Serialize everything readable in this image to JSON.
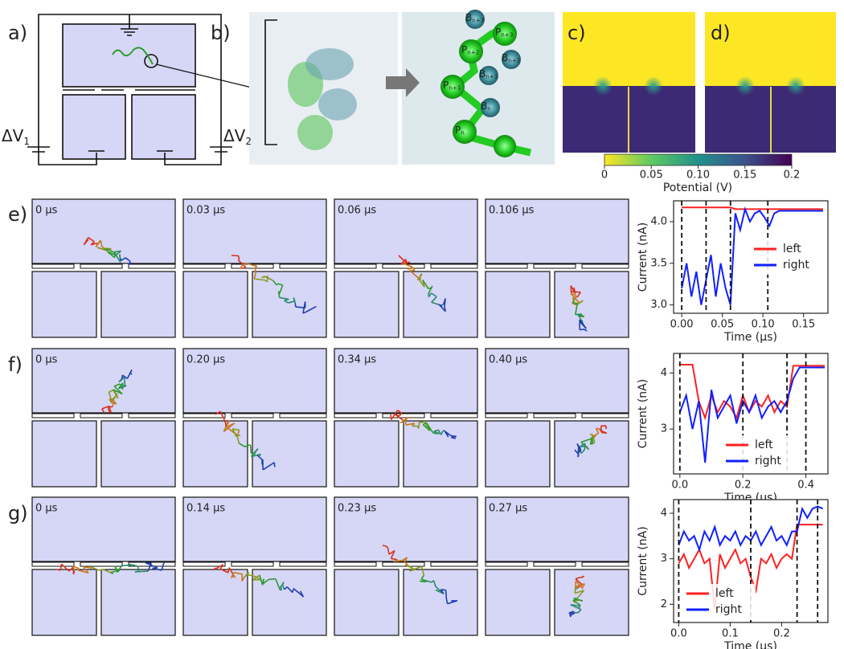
{
  "panel_labels": [
    "a)",
    "b)",
    "c)",
    "d)",
    "e)",
    "f)",
    "g)"
  ],
  "circuit": {
    "voltages": [
      {
        "base": "ΔV",
        "sub": "1"
      },
      {
        "base": "ΔV",
        "sub": "2"
      }
    ]
  },
  "molecule_labels": [
    {
      "base": "B",
      "sub": "n+3"
    },
    {
      "base": "P",
      "sub": "n+3"
    },
    {
      "base": "P",
      "sub": "n+2"
    },
    {
      "base": "B",
      "sub": "n+2"
    },
    {
      "base": "B",
      "sub": "n+1"
    },
    {
      "base": "P",
      "sub": "n+1"
    },
    {
      "base": "B",
      "sub": "n"
    },
    {
      "base": "P",
      "sub": "n"
    }
  ],
  "colorbar": {
    "label": "Potential (V)",
    "lim": [
      0,
      0.2
    ],
    "ticks": [
      0,
      0.05,
      {
        "value": 0.1,
        "label": "0.10"
      },
      0.15,
      0.2
    ]
  },
  "snapshots": [
    [
      "0 μs",
      "0.03 μs",
      "0.06 μs",
      "0.106 μs"
    ],
    [
      "0 μs",
      "0.20 μs",
      "0.34 μs",
      "0.40 μs"
    ],
    [
      "0 μs",
      "0.14 μs",
      "0.23 μs",
      "0.27 μs"
    ]
  ],
  "chart_data": [
    {
      "type": "line",
      "x_label": "Time (μs)",
      "y_label": "Current (nA)",
      "xlim": [
        -0.01,
        0.18
      ],
      "ylim": [
        2.9,
        4.25
      ],
      "xticks": [
        {
          "value": 0,
          "label": "0.00"
        },
        0.05,
        {
          "value": 0.1,
          "label": "0.10"
        },
        0.15
      ],
      "yticks": [
        {
          "value": 3,
          "label": "3.0"
        },
        3.5,
        {
          "value": 4,
          "label": "4.0"
        }
      ],
      "vlines": [
        0,
        0.03,
        0.06,
        0.106
      ],
      "legend": "center right",
      "x": [
        0,
        0.006,
        0.012,
        0.018,
        0.024,
        0.03,
        0.036,
        0.042,
        0.048,
        0.054,
        0.06,
        0.066,
        0.072,
        0.078,
        0.084,
        0.09,
        0.096,
        0.102,
        0.108,
        0.114,
        0.12,
        0.126,
        0.132,
        0.138,
        0.144,
        0.15,
        0.156,
        0.162,
        0.168,
        0.174
      ],
      "series": [
        {
          "name": "left",
          "color": "#ff2020",
          "values": [
            4.17,
            4.17,
            4.17,
            4.17,
            4.17,
            4.17,
            4.17,
            4.17,
            4.17,
            4.17,
            4.17,
            4.15,
            4.15,
            4.15,
            4.15,
            4.15,
            4.15,
            4.15,
            4.15,
            4.15,
            4.15,
            4.15,
            4.15,
            4.15,
            4.15,
            4.15,
            4.15,
            4.15,
            4.15,
            4.15
          ]
        },
        {
          "name": "right",
          "color": "#1020ff",
          "values": [
            3.2,
            3.5,
            3.1,
            3.4,
            3.0,
            3.3,
            3.6,
            3.1,
            3.5,
            3.2,
            3.0,
            4.1,
            3.9,
            4.15,
            4.0,
            4.1,
            4.13,
            4.05,
            3.95,
            4.1,
            4.13,
            4.13,
            4.13,
            4.13,
            4.13,
            4.13,
            4.13,
            4.13,
            4.13,
            4.13
          ]
        }
      ]
    },
    {
      "type": "line",
      "x_label": "Time (μs)",
      "y_label": "Current (nA)",
      "xlim": [
        -0.02,
        0.47
      ],
      "ylim": [
        2.2,
        4.35
      ],
      "xticks": [
        {
          "value": 0,
          "label": "0.0"
        },
        0.2,
        0.4
      ],
      "yticks": [
        3,
        4
      ],
      "vlines": [
        0,
        0.2,
        0.34,
        0.4
      ],
      "legend": "lower center",
      "x": [
        0,
        0.02,
        0.04,
        0.06,
        0.08,
        0.1,
        0.12,
        0.14,
        0.16,
        0.18,
        0.2,
        0.22,
        0.24,
        0.26,
        0.28,
        0.3,
        0.32,
        0.34,
        0.36,
        0.38,
        0.4,
        0.42,
        0.44,
        0.46
      ],
      "series": [
        {
          "name": "left",
          "color": "#ff2020",
          "values": [
            4.15,
            4.15,
            4.15,
            3.5,
            3.2,
            3.6,
            3.3,
            3.5,
            3.4,
            3.2,
            3.6,
            3.3,
            3.5,
            3.4,
            3.6,
            3.3,
            3.5,
            3.4,
            4.13,
            4.13,
            4.13,
            4.13,
            4.13,
            4.13
          ]
        },
        {
          "name": "right",
          "color": "#1020ff",
          "values": [
            3.3,
            3.6,
            3.0,
            3.5,
            2.4,
            3.7,
            3.2,
            3.4,
            3.6,
            3.1,
            3.5,
            3.3,
            3.6,
            3.2,
            3.4,
            3.5,
            3.3,
            3.5,
            3.9,
            4.1,
            4.1,
            4.1,
            4.1,
            4.1
          ]
        }
      ]
    },
    {
      "type": "line",
      "x_label": "Time (μs)",
      "y_label": "Current (nA)",
      "xlim": [
        -0.01,
        0.29
      ],
      "ylim": [
        1.6,
        4.3
      ],
      "xticks": [
        {
          "value": 0,
          "label": "0.0"
        },
        0.1,
        0.2
      ],
      "yticks": [
        2,
        3,
        4
      ],
      "vlines": [
        0,
        0.14,
        0.23,
        0.27
      ],
      "legend": "lower left",
      "x": [
        0,
        0.01,
        0.02,
        0.03,
        0.04,
        0.05,
        0.06,
        0.07,
        0.08,
        0.09,
        0.1,
        0.11,
        0.12,
        0.13,
        0.14,
        0.15,
        0.16,
        0.17,
        0.18,
        0.19,
        0.2,
        0.21,
        0.22,
        0.23,
        0.24,
        0.25,
        0.26,
        0.27,
        0.28
      ],
      "series": [
        {
          "name": "left",
          "color": "#ff2020",
          "values": [
            2.9,
            3.1,
            2.8,
            3.0,
            3.2,
            2.9,
            3.0,
            1.9,
            3.1,
            2.8,
            3.0,
            3.2,
            2.9,
            3.0,
            2.6,
            2.3,
            3.0,
            2.9,
            3.1,
            2.8,
            3.0,
            3.1,
            3.0,
            3.75,
            3.75,
            3.75,
            3.75,
            3.75,
            3.75
          ]
        },
        {
          "name": "right",
          "color": "#1020ff",
          "values": [
            3.3,
            3.6,
            3.4,
            3.5,
            3.2,
            3.6,
            3.4,
            3.7,
            3.3,
            3.5,
            3.4,
            3.6,
            3.3,
            3.5,
            3.4,
            3.6,
            3.3,
            3.5,
            3.7,
            3.4,
            3.5,
            3.3,
            3.6,
            3.6,
            4.1,
            3.9,
            4.1,
            4.15,
            4.1
          ]
        }
      ]
    }
  ]
}
